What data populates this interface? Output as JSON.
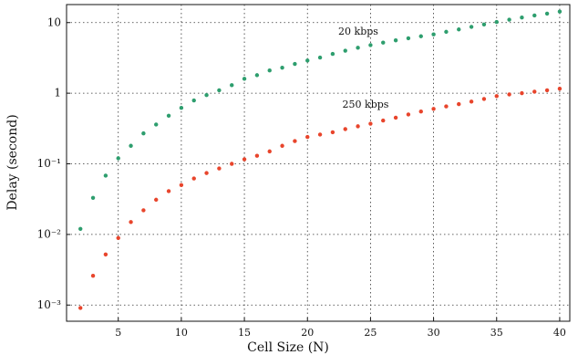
{
  "chart_data": {
    "type": "scatter",
    "x_label": "Cell Size (N)",
    "y_label": "Delay (second)",
    "x": [
      2,
      3,
      4,
      5,
      6,
      7,
      8,
      9,
      10,
      11,
      12,
      13,
      14,
      15,
      16,
      17,
      18,
      19,
      20,
      21,
      22,
      23,
      24,
      25,
      26,
      27,
      28,
      29,
      30,
      31,
      32,
      33,
      34,
      35,
      36,
      37,
      38,
      39,
      40
    ],
    "series": [
      {
        "name": "20 kbps",
        "color": "#2e9e6e",
        "values": [
          0.012,
          0.033,
          0.068,
          0.12,
          0.18,
          0.27,
          0.36,
          0.48,
          0.62,
          0.79,
          0.94,
          1.1,
          1.3,
          1.6,
          1.8,
          2.1,
          2.3,
          2.6,
          2.9,
          3.2,
          3.6,
          4.0,
          4.4,
          4.8,
          5.2,
          5.6,
          6.0,
          6.4,
          6.8,
          7.4,
          8.0,
          8.7,
          9.4,
          10.2,
          11,
          11.8,
          12.6,
          13.4,
          14.3
        ]
      },
      {
        "name": "250 kbps",
        "color": "#e8452c",
        "values": [
          0.00091,
          0.0026,
          0.0052,
          0.0089,
          0.015,
          0.022,
          0.031,
          0.041,
          0.05,
          0.062,
          0.074,
          0.086,
          0.1,
          0.116,
          0.13,
          0.15,
          0.18,
          0.21,
          0.24,
          0.26,
          0.28,
          0.31,
          0.34,
          0.37,
          0.41,
          0.45,
          0.5,
          0.55,
          0.6,
          0.65,
          0.7,
          0.76,
          0.83,
          0.91,
          0.96,
          1.0,
          1.05,
          1.1,
          1.16
        ]
      }
    ],
    "xlim": [
      0.9,
      40.8
    ],
    "xticks": [
      5,
      10,
      15,
      20,
      25,
      30,
      35,
      40
    ],
    "ylim": [
      0.00059,
      18
    ],
    "log_y": true,
    "yticks": [
      {
        "value": 0.001,
        "label": "10⁻³"
      },
      {
        "value": 0.01,
        "label": "10⁻²"
      },
      {
        "value": 0.1,
        "label": "10⁻¹"
      },
      1,
      10
    ],
    "grid": true
  }
}
